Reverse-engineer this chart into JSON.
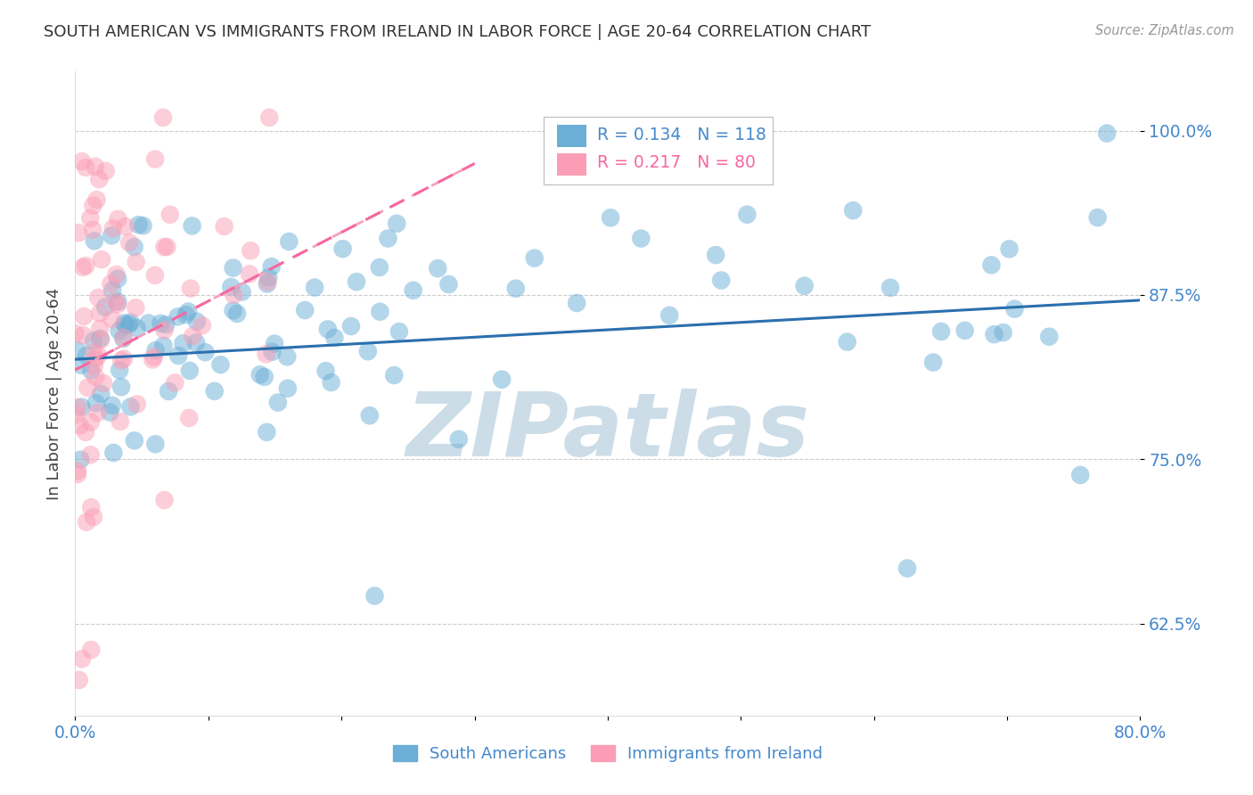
{
  "title": "SOUTH AMERICAN VS IMMIGRANTS FROM IRELAND IN LABOR FORCE | AGE 20-64 CORRELATION CHART",
  "source": "Source: ZipAtlas.com",
  "ylabel": "In Labor Force | Age 20-64",
  "xmin": 0.0,
  "xmax": 0.8,
  "ymin": 0.555,
  "ymax": 1.045,
  "yticks": [
    0.625,
    0.75,
    0.875,
    1.0
  ],
  "ytick_labels": [
    "62.5%",
    "75.0%",
    "87.5%",
    "100.0%"
  ],
  "xtick_vals": [
    0.0,
    0.1,
    0.2,
    0.3,
    0.4,
    0.5,
    0.6,
    0.7,
    0.8
  ],
  "xtick_labels": [
    "0.0%",
    "",
    "",
    "",
    "",
    "",
    "",
    "",
    "80.0%"
  ],
  "blue_R": 0.134,
  "blue_N": 118,
  "pink_R": 0.217,
  "pink_N": 80,
  "blue_color": "#6baed6",
  "pink_color": "#fb9eb5",
  "blue_line_color": "#2b6faf",
  "pink_line_color": "#f768a1",
  "pink_dash_color": "#f4a0bc",
  "watermark": "ZIPatlas",
  "watermark_color": "#ccdde8",
  "legend_label_blue": "South Americans",
  "legend_label_pink": "Immigrants from Ireland",
  "axis_color": "#4488cc",
  "title_color": "#333333",
  "blue_line_x0": 0.0,
  "blue_line_y0": 0.826,
  "blue_line_x1": 0.8,
  "blue_line_y1": 0.871,
  "pink_line_x0": 0.0,
  "pink_line_y0": 0.818,
  "pink_line_x1": 0.3,
  "pink_line_y1": 0.975
}
